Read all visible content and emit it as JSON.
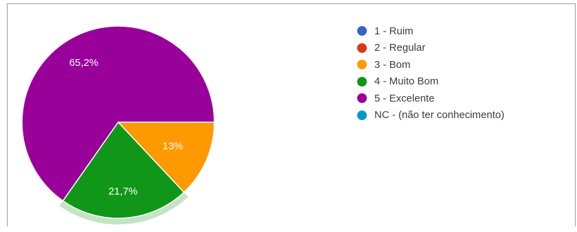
{
  "chart_data": {
    "type": "pie",
    "categories": [
      "1 - Ruim",
      "2 - Regular",
      "3 - Bom",
      "4 - Muito Bom",
      "5 - Excelente",
      "NC - (não ter conhecimento)"
    ],
    "values": [
      0,
      0,
      13,
      21.7,
      65.2,
      0
    ],
    "data_labels": [
      "",
      "",
      "13%",
      "21,7%",
      "65,2%",
      ""
    ],
    "colors": [
      "#3366cc",
      "#dc3912",
      "#ff9900",
      "#109618",
      "#990099",
      "#0099c6"
    ],
    "highlighted_category": "4 - Muito Bom",
    "legend_position": "right"
  }
}
